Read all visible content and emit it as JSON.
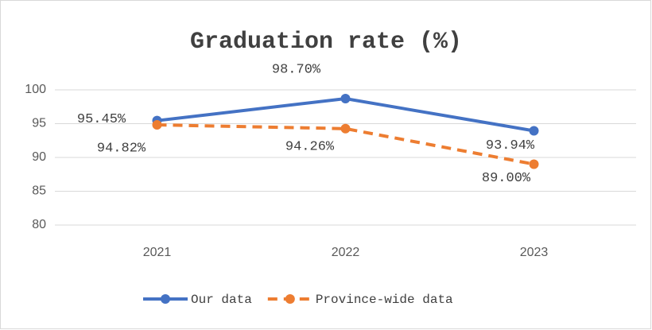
{
  "chart_data": {
    "type": "line",
    "title": "Graduation rate (%)",
    "categories": [
      "2021",
      "2022",
      "2023"
    ],
    "series": [
      {
        "name": "Our data",
        "color": "#4472c4",
        "values": [
          95.45,
          98.7,
          93.94
        ],
        "value_labels": [
          "95.45%",
          "98.70%",
          "93.94%"
        ]
      },
      {
        "name": "Province-wide data",
        "color": "#ed7d31",
        "dashed": true,
        "values": [
          94.82,
          94.26,
          89.0
        ],
        "value_labels": [
          "94.82%",
          "94.26%",
          "89.00%"
        ]
      }
    ],
    "ylim": [
      80,
      100
    ],
    "yticks": [
      80,
      85,
      90,
      95,
      100
    ],
    "grid": true,
    "legend": "bottom"
  }
}
